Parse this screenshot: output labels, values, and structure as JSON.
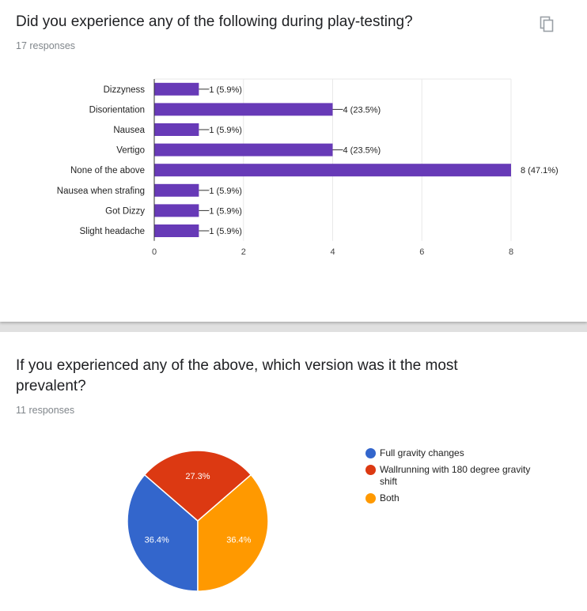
{
  "q1": {
    "title": "Did you experience any of the following during play-testing?",
    "responses": "17 responses",
    "copy_icon": "copy-icon"
  },
  "q2": {
    "title_line1": "If you experienced any of the above, which version was it the most",
    "title_line2": "prevalent?",
    "responses": "11 responses"
  },
  "colors": {
    "bar": "#673ab7",
    "blue": "#3366cc",
    "red": "#dc3912",
    "orange": "#ff9900"
  },
  "chart_data": [
    {
      "type": "bar",
      "orientation": "horizontal",
      "categories": [
        "Dizzyness",
        "Disorientation",
        "Nausea",
        "Vertigo",
        "None of the above",
        "Nausea when strafing",
        "Got Dizzy",
        "Slight headache"
      ],
      "values": [
        1,
        4,
        1,
        4,
        8,
        1,
        1,
        1
      ],
      "data_labels": [
        "1 (5.9%)",
        "4 (23.5%)",
        "1 (5.9%)",
        "4 (23.5%)",
        "8 (47.1%)",
        "1 (5.9%)",
        "1 (5.9%)",
        "1 (5.9%)"
      ],
      "xlim": [
        0,
        8
      ],
      "xticks": [
        "0",
        "2",
        "4",
        "6",
        "8"
      ],
      "grid": true
    },
    {
      "type": "pie",
      "slices": [
        {
          "label": "Full gravity changes",
          "value": 36.4,
          "display": "36.4%",
          "color": "#3366cc"
        },
        {
          "label": "Wallrunning with 180 degree gravity shift",
          "value": 27.3,
          "display": "27.3%",
          "color": "#dc3912"
        },
        {
          "label": "Both",
          "value": 36.4,
          "display": "36.4%",
          "color": "#ff9900"
        }
      ],
      "legend_position": "right"
    }
  ]
}
